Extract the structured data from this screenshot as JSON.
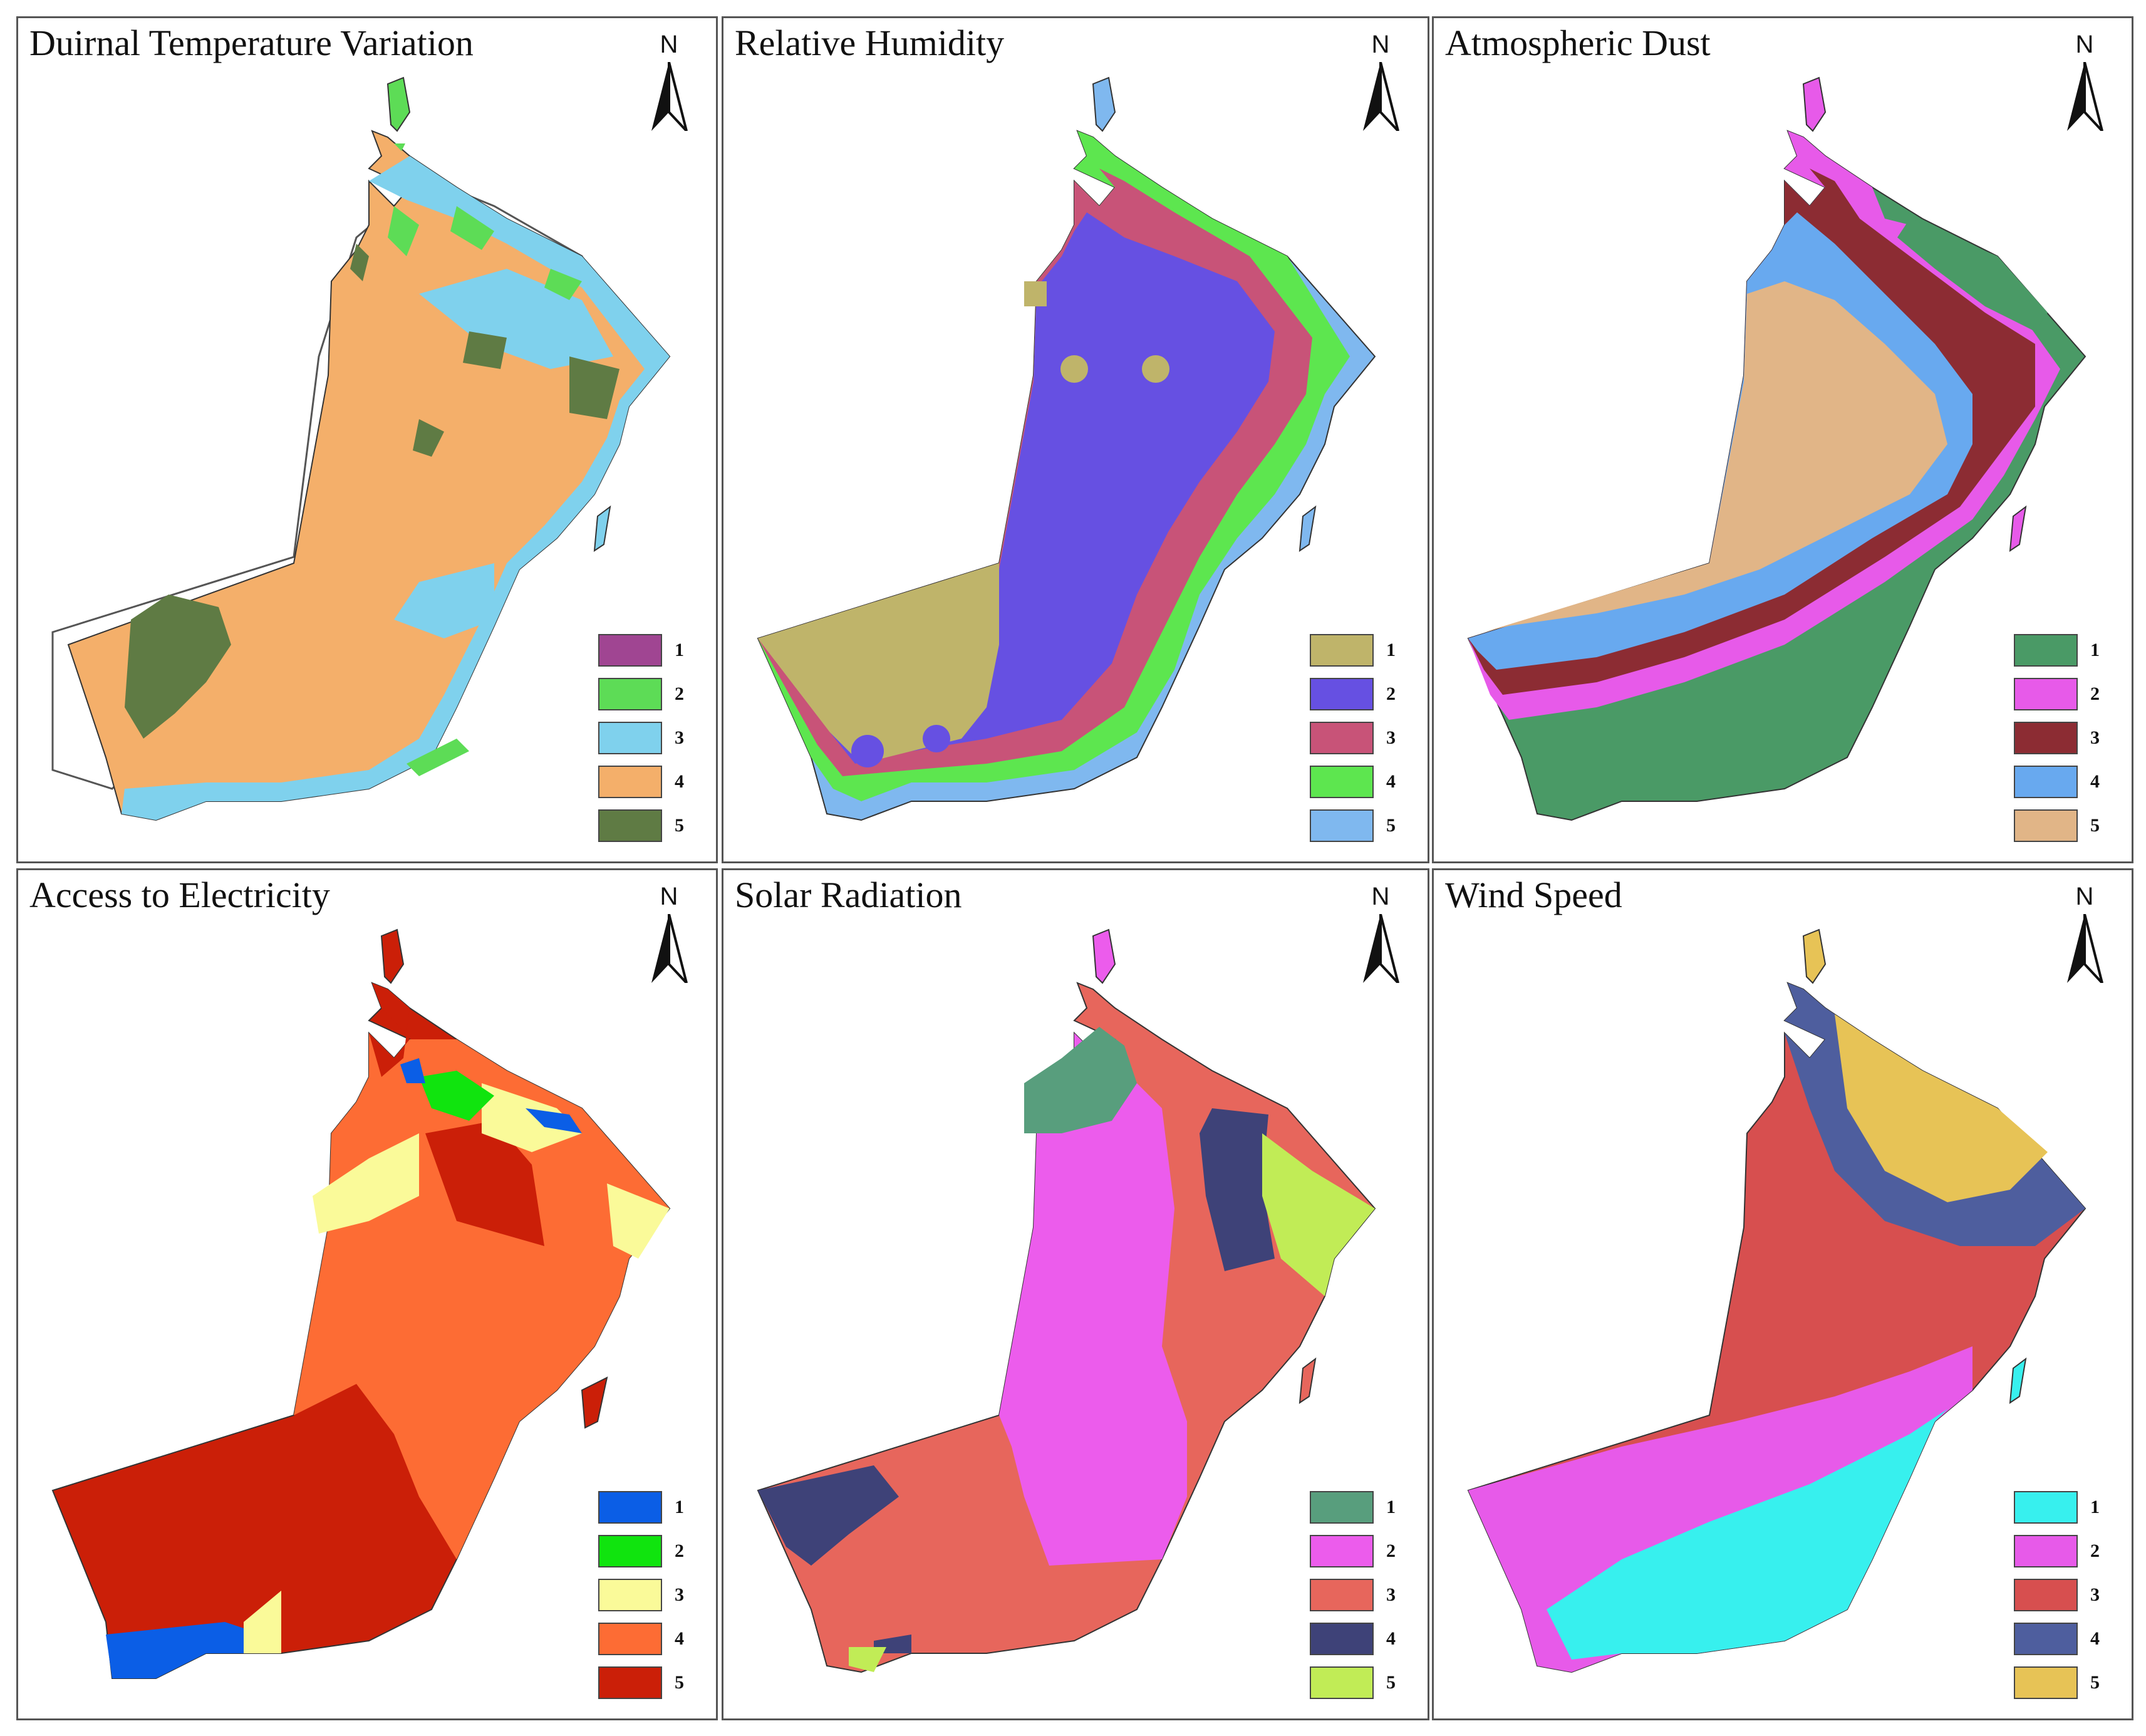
{
  "panels": [
    {
      "title": "Duirnal Temperature Variation",
      "north_label": "N",
      "legend": [
        {
          "label": "1",
          "color": "#a04592"
        },
        {
          "label": "2",
          "color": "#5ddc56"
        },
        {
          "label": "3",
          "color": "#7fd1ed"
        },
        {
          "label": "4",
          "color": "#f4af6a"
        },
        {
          "label": "5",
          "color": "#5f7b44"
        }
      ]
    },
    {
      "title": "Relative Humidity",
      "north_label": "N",
      "legend": [
        {
          "label": "1",
          "color": "#bfb46a"
        },
        {
          "label": "2",
          "color": "#6650e2"
        },
        {
          "label": "3",
          "color": "#c85378"
        },
        {
          "label": "4",
          "color": "#5de64f"
        },
        {
          "label": "5",
          "color": "#7fb8ef"
        }
      ]
    },
    {
      "title": "Atmospheric Dust",
      "north_label": "N",
      "legend": [
        {
          "label": "1",
          "color": "#4a9a66"
        },
        {
          "label": "2",
          "color": "#e75ae9"
        },
        {
          "label": "3",
          "color": "#8c2c33"
        },
        {
          "label": "4",
          "color": "#68a9ef"
        },
        {
          "label": "5",
          "color": "#e1b587"
        }
      ]
    },
    {
      "title": "Access to Electricity",
      "north_label": "N",
      "legend": [
        {
          "label": "1",
          "color": "#0b5ee6"
        },
        {
          "label": "2",
          "color": "#10e40e"
        },
        {
          "label": "3",
          "color": "#fafa99"
        },
        {
          "label": "4",
          "color": "#fd6c34"
        },
        {
          "label": "5",
          "color": "#cb1f08"
        }
      ]
    },
    {
      "title": "Solar Radiation",
      "north_label": "N",
      "legend": [
        {
          "label": "1",
          "color": "#589e7d"
        },
        {
          "label": "2",
          "color": "#ec5cec"
        },
        {
          "label": "3",
          "color": "#e7665c"
        },
        {
          "label": "4",
          "color": "#3e4278"
        },
        {
          "label": "5",
          "color": "#c1ec56"
        }
      ]
    },
    {
      "title": "Wind Speed",
      "north_label": "N",
      "legend": [
        {
          "label": "1",
          "color": "#37f0ee"
        },
        {
          "label": "2",
          "color": "#e75ae9"
        },
        {
          "label": "3",
          "color": "#d74f4f"
        },
        {
          "label": "4",
          "color": "#4e5e9e"
        },
        {
          "label": "5",
          "color": "#e7c356"
        }
      ]
    }
  ]
}
